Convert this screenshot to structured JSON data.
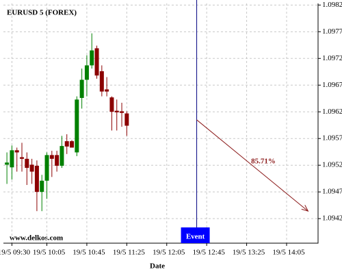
{
  "chart_data": {
    "type": "candlestick",
    "title": "EURUSD 5 (FOREX)",
    "x_label": "Date",
    "watermark": "www.delkos.com",
    "x": [
      0,
      1,
      2,
      3,
      4,
      5,
      6,
      7,
      8,
      9,
      10,
      11,
      12,
      13,
      14,
      15,
      16,
      17,
      18,
      19,
      20,
      21,
      22,
      23,
      24
    ],
    "open": [
      1.09521,
      1.09516,
      1.09548,
      1.09535,
      1.09532,
      1.09521,
      1.09519,
      1.0947,
      1.09491,
      1.09539,
      1.09539,
      1.09519,
      1.09565,
      1.09565,
      1.09544,
      1.09646,
      1.0968,
      1.09707,
      1.09739,
      1.09696,
      1.09662,
      1.09647,
      1.09622,
      1.09621,
      1.09617
    ],
    "high": [
      1.09544,
      1.09557,
      1.09553,
      1.09562,
      1.09544,
      1.09532,
      1.09529,
      1.09502,
      1.09544,
      1.09547,
      1.09547,
      1.09575,
      1.09578,
      1.09567,
      1.09649,
      1.09701,
      1.09726,
      1.09767,
      1.09744,
      1.09707,
      1.09685,
      1.09649,
      1.09643,
      1.09637,
      1.09621
    ],
    "low": [
      1.09485,
      1.09493,
      1.09508,
      1.09508,
      1.09483,
      1.09485,
      1.09434,
      1.09434,
      1.09457,
      1.09498,
      1.09508,
      1.09515,
      1.09541,
      1.09553,
      1.09537,
      1.09626,
      1.09649,
      1.09701,
      1.09682,
      1.09649,
      1.09649,
      1.09585,
      1.09585,
      1.09592,
      1.09575
    ],
    "close": [
      1.09525,
      1.09548,
      1.09544,
      1.09532,
      1.09515,
      1.09508,
      1.0947,
      1.09491,
      1.09539,
      1.09532,
      1.09519,
      1.09556,
      1.09555,
      1.09553,
      1.09643,
      1.0968,
      1.09707,
      1.09735,
      1.09688,
      1.09658,
      1.09658,
      1.0962,
      1.09619,
      1.09618,
      1.09594
    ],
    "up_color": "#008000",
    "down_color": "#8b0000",
    "xlim": [
      -0.7,
      62.3
    ],
    "ylim": [
      1.09374,
      1.09823
    ],
    "xticks": [
      {
        "value": 1,
        "label": "19/5 09:30"
      },
      {
        "value": 8,
        "label": "19/5 10:05"
      },
      {
        "value": 16,
        "label": "19/5 10:45"
      },
      {
        "value": 24,
        "label": "19/5 11:25"
      },
      {
        "value": 32,
        "label": "19/5 12:05"
      },
      {
        "value": 40,
        "label": "19/5 12:45"
      },
      {
        "value": 48,
        "label": "19/5 13:25"
      },
      {
        "value": 56,
        "label": "19/5 14:05"
      }
    ],
    "yticks": [
      1.0942,
      1.0947,
      1.0952,
      1.0957,
      1.0962,
      1.0967,
      1.0972,
      1.0977,
      1.0982
    ],
    "grid": true,
    "event": {
      "label": "Event",
      "x": 38,
      "color": "#0000ff"
    },
    "forecast": {
      "value": 85.71,
      "value_label": "85.71%",
      "x": [
        38,
        60.3
      ],
      "y": [
        1.09605,
        1.09434
      ],
      "color": "#8b1a1a"
    }
  }
}
